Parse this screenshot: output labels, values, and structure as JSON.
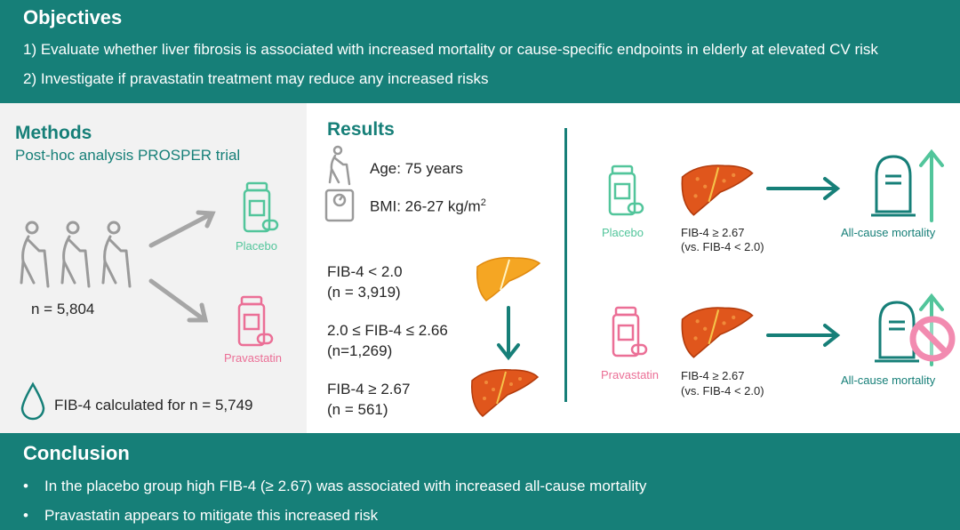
{
  "objectives": {
    "title": "Objectives",
    "line1": "1) Evaluate whether liver fibrosis is associated with increased mortality or cause-specific endpoints in elderly at elevated CV risk",
    "line2": "2) Investigate if pravastatin treatment may reduce any increased risks"
  },
  "methods": {
    "title": "Methods",
    "subtitle": "Post-hoc analysis PROSPER trial",
    "n_total": "n = 5,804",
    "placebo": "Placebo",
    "pravastatin": "Pravastatin",
    "fib4_calc": "FIB-4 calculated for n = 5,749"
  },
  "results": {
    "title": "Results",
    "age": "Age: 75 years",
    "bmi": "BMI: 26-27 kg/m",
    "bmi_sup": "2",
    "groups": [
      {
        "label": "FIB-4 < 2.0",
        "n": "(n = 3,919)"
      },
      {
        "label": "2.0 ≤ FIB-4 ≤ 2.66",
        "n": "(n=1,269)"
      },
      {
        "label": "FIB-4 ≥ 2.67",
        "n": "(n = 561)"
      }
    ],
    "rows": [
      {
        "arm": "Placebo",
        "fib": "FIB-4 ≥ 2.67",
        "comp": "(vs. FIB-4 < 2.0)",
        "outcome": "All-cause mortality"
      },
      {
        "arm": "Pravastatin",
        "fib": "FIB-4 ≥ 2.67",
        "comp": "(vs. FIB-4 < 2.0)",
        "outcome": "All-cause mortality"
      }
    ]
  },
  "conclusion": {
    "title": "Conclusion",
    "bullet_symbol": "•",
    "bullets": [
      "In the placebo group high FIB-4 (≥ 2.67) was associated with increased all-cause mortality",
      "Pravastatin appears to mitigate this increased risk"
    ]
  },
  "colors": {
    "teal": "#167f78",
    "placebo_green": "#52c59b",
    "pravastatin_pink": "#eb6f96",
    "liver_dark": "#d9481a",
    "liver_light": "#f5a623"
  }
}
